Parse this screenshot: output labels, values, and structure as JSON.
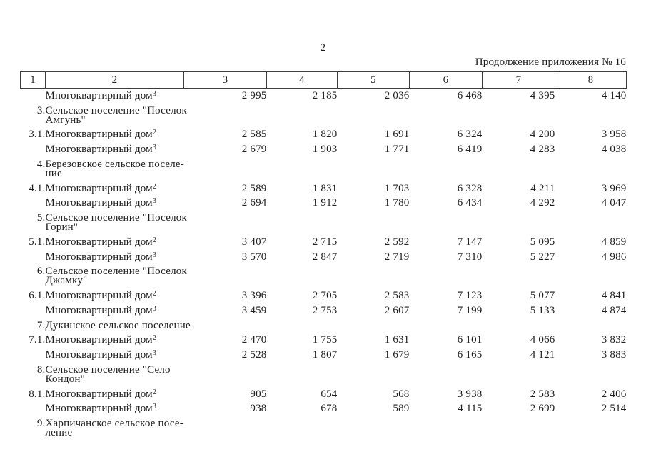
{
  "page": {
    "number": "2",
    "caption": "Продолжение приложения № 16"
  },
  "table": {
    "headers": [
      "1",
      "2",
      "3",
      "4",
      "5",
      "6",
      "7",
      "8"
    ],
    "rows": [
      {
        "num": "",
        "name": "Многоквартирный дом",
        "sup": "3",
        "values": [
          "2 995",
          "2 185",
          "2 036",
          "6 468",
          "4 395",
          "4 140"
        ]
      },
      {
        "num": "3.",
        "name": "Сельское поселение \"Поселок\nАмгунь\"",
        "sup": "",
        "values": [
          "",
          "",
          "",
          "",
          "",
          ""
        ]
      },
      {
        "num": "3.1.",
        "name": "Многоквартирный дом",
        "sup": "2",
        "values": [
          "2 585",
          "1 820",
          "1 691",
          "6 324",
          "4 200",
          "3 958"
        ]
      },
      {
        "num": "",
        "name": "Многоквартирный дом",
        "sup": "3",
        "values": [
          "2 679",
          "1 903",
          "1 771",
          "6 419",
          "4 283",
          "4 038"
        ]
      },
      {
        "num": "4.",
        "name": "Березовское сельское поселе-\nние",
        "sup": "",
        "values": [
          "",
          "",
          "",
          "",
          "",
          ""
        ]
      },
      {
        "num": "4.1.",
        "name": "Многоквартирный дом",
        "sup": "2",
        "values": [
          "2 589",
          "1 831",
          "1 703",
          "6 328",
          "4 211",
          "3 969"
        ]
      },
      {
        "num": "",
        "name": "Многоквартирный дом",
        "sup": "3",
        "values": [
          "2 694",
          "1 912",
          "1 780",
          "6 434",
          "4 292",
          "4 047"
        ]
      },
      {
        "num": "5.",
        "name": "Сельское поселение \"Поселок\nГорин\"",
        "sup": "",
        "values": [
          "",
          "",
          "",
          "",
          "",
          ""
        ]
      },
      {
        "num": "5.1.",
        "name": "Многоквартирный дом",
        "sup": "2",
        "values": [
          "3 407",
          "2 715",
          "2 592",
          "7 147",
          "5 095",
          "4 859"
        ]
      },
      {
        "num": "",
        "name": "Многоквартирный дом",
        "sup": "3",
        "values": [
          "3 570",
          "2 847",
          "2 719",
          "7 310",
          "5 227",
          "4 986"
        ]
      },
      {
        "num": "6.",
        "name": "Сельское поселение \"Поселок\nДжамку\"",
        "sup": "",
        "values": [
          "",
          "",
          "",
          "",
          "",
          ""
        ]
      },
      {
        "num": "6.1.",
        "name": "Многоквартирный дом",
        "sup": "2",
        "values": [
          "3 396",
          "2 705",
          "2 583",
          "7 123",
          "5 077",
          "4 841"
        ]
      },
      {
        "num": "",
        "name": "Многоквартирный дом",
        "sup": "3",
        "values": [
          "3 459",
          "2 753",
          "2 607",
          "7 199",
          "5 133",
          "4 874"
        ]
      },
      {
        "num": "7.",
        "name": "Дукинское сельское поселение",
        "sup": "",
        "values": [
          "",
          "",
          "",
          "",
          "",
          ""
        ]
      },
      {
        "num": "7.1.",
        "name": "Многоквартирный дом",
        "sup": "2",
        "values": [
          "2 470",
          "1 755",
          "1 631",
          "6 101",
          "4 066",
          "3 832"
        ]
      },
      {
        "num": "",
        "name": "Многоквартирный дом",
        "sup": "3",
        "values": [
          "2 528",
          "1 807",
          "1 679",
          "6 165",
          "4 121",
          "3 883"
        ]
      },
      {
        "num": "8.",
        "name": "Сельское поселение \"Село\nКондон\"",
        "sup": "",
        "values": [
          "",
          "",
          "",
          "",
          "",
          ""
        ]
      },
      {
        "num": "8.1.",
        "name": "Многоквартирный дом",
        "sup": "2",
        "values": [
          "905",
          "654",
          "568",
          "3 938",
          "2 583",
          "2 406"
        ]
      },
      {
        "num": "",
        "name": "Многоквартирный дом",
        "sup": "3",
        "values": [
          "938",
          "678",
          "589",
          "4 115",
          "2 699",
          "2 514"
        ]
      },
      {
        "num": "9.",
        "name": "Харпичанское сельское посе-\nление",
        "sup": "",
        "values": [
          "",
          "",
          "",
          "",
          "",
          ""
        ]
      }
    ]
  }
}
